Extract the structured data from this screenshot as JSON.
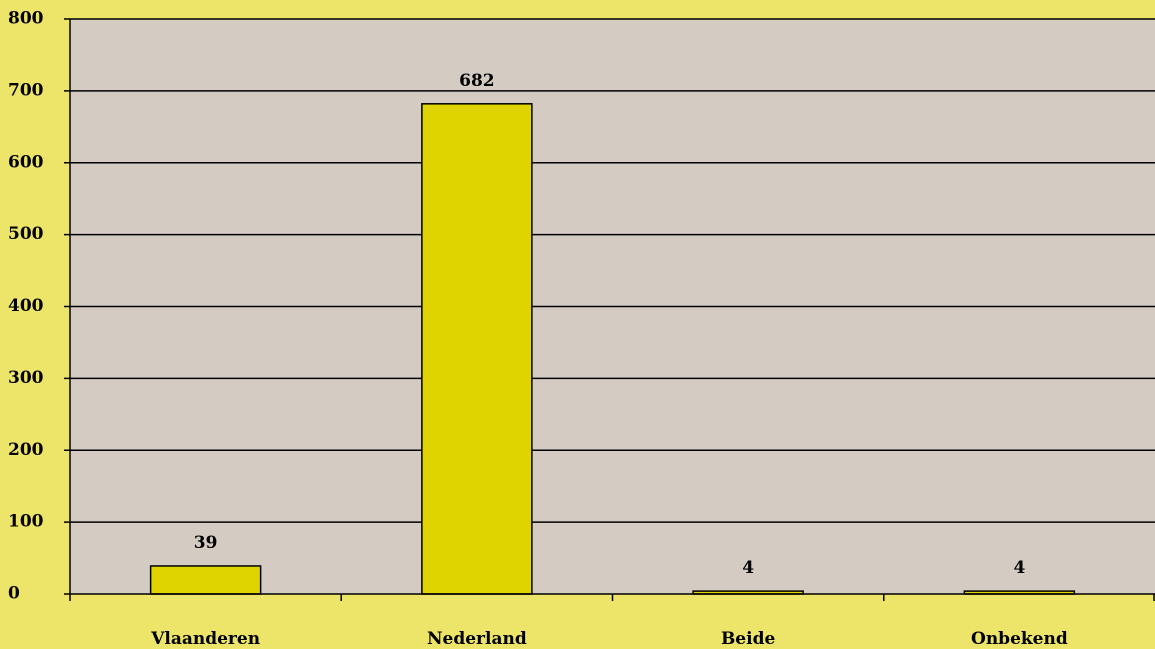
{
  "chart_data": {
    "type": "bar",
    "title": "",
    "xlabel": "",
    "ylabel": "",
    "categories": [
      "Vlaanderen",
      "Nederland",
      "Beide",
      "Onbekend"
    ],
    "values": [
      39,
      682,
      4,
      4
    ],
    "data_labels": [
      "39",
      "682",
      "4",
      "4"
    ],
    "ylim": [
      0,
      800
    ],
    "yticks": [
      0,
      100,
      200,
      300,
      400,
      500,
      600,
      700,
      800
    ],
    "ytick_labels": [
      "0",
      "100",
      "200",
      "300",
      "400",
      "500",
      "600",
      "700",
      "800"
    ],
    "grid": true,
    "legend": "none",
    "colors": {
      "page_background": "#ede46a",
      "plot_background": "#d4ccc3",
      "bar_fill": "#e0d400",
      "bar_stroke": "#000000",
      "gridline": "#000000",
      "text": "#000000"
    }
  }
}
